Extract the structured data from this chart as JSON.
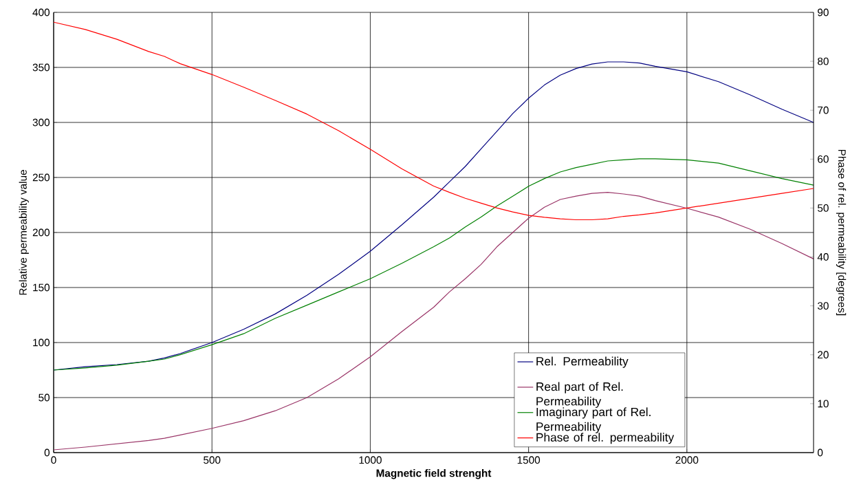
{
  "chart_data": {
    "type": "line",
    "xlabel": "Magnetic field strenght",
    "ylabel": "Relative permeability value",
    "y2label": "Phase of rel. permeability [degrees]",
    "xlim": [
      0,
      2400
    ],
    "xticks": [
      0,
      500,
      1000,
      1500,
      2000
    ],
    "ylim": [
      0,
      400
    ],
    "yticks": [
      0,
      50,
      100,
      150,
      200,
      250,
      300,
      350,
      400
    ],
    "y2lim": [
      0,
      90
    ],
    "y2ticks": [
      0,
      10,
      20,
      30,
      40,
      50,
      60,
      70,
      80,
      90
    ],
    "grid": true,
    "legend": "bottom right",
    "marker": "none",
    "line_style": "solid",
    "x": [
      0,
      100,
      200,
      300,
      350,
      400,
      500,
      600,
      700,
      800,
      900,
      1000,
      1100,
      1200,
      1250,
      1300,
      1350,
      1400,
      1450,
      1500,
      1550,
      1600,
      1650,
      1700,
      1750,
      1800,
      1850,
      1900,
      2000,
      2100,
      2200,
      2300,
      2400
    ],
    "series": [
      {
        "name": "Rel. Permeability",
        "color": "#000080",
        "values": [
          75,
          78,
          80,
          83,
          86,
          90,
          100,
          112,
          126,
          143,
          162,
          183,
          207,
          232,
          246,
          260,
          276,
          292,
          308,
          322,
          334,
          343,
          349,
          353,
          355,
          355,
          354,
          351,
          346,
          337,
          325,
          312,
          300
        ]
      },
      {
        "name": "Real part of Rel. Permeability",
        "color": "#993366",
        "values": [
          2.5,
          5,
          8,
          11,
          13,
          16,
          22,
          29,
          38,
          50,
          67,
          87,
          110,
          132,
          146,
          158,
          171,
          187,
          200,
          213,
          223,
          230,
          233,
          235.5,
          236.5,
          235,
          233,
          229,
          222,
          214,
          203,
          190,
          176
        ]
      },
      {
        "name": "Imaginary part of Rel. Permeability",
        "color": "#008000",
        "values": [
          75,
          77,
          79.5,
          83,
          85,
          89,
          98,
          108,
          122,
          134,
          146,
          158,
          172,
          187,
          195,
          205,
          214,
          224,
          233,
          242,
          249,
          255,
          259,
          262,
          265,
          266,
          267,
          267,
          266,
          263,
          256,
          249,
          243
        ]
      },
      {
        "name": "Phase of rel. permeability",
        "color": "#ff0000",
        "axis": "y2",
        "values": [
          88,
          86.5,
          84.5,
          82,
          81,
          79.5,
          77.3,
          74.7,
          72,
          69.2,
          65.8,
          62,
          58,
          54.5,
          53.2,
          52,
          51,
          50,
          49.2,
          48.5,
          48.1,
          47.8,
          47.6,
          47.6,
          47.8,
          48.3,
          48.6,
          49,
          50,
          51,
          52,
          53,
          54
        ]
      }
    ]
  }
}
